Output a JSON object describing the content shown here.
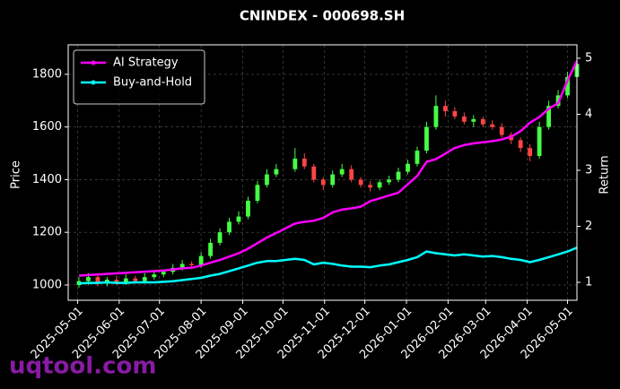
{
  "chart_data": {
    "type": "candlestick",
    "title": "CNINDEX - 000698.SH",
    "ylabel": "Price",
    "y2label": "Return",
    "x": [
      "2025-05-02",
      "2025-05-09",
      "2025-05-16",
      "2025-05-23",
      "2025-05-30",
      "2025-06-06",
      "2025-06-13",
      "2025-06-20",
      "2025-06-27",
      "2025-07-04",
      "2025-07-11",
      "2025-07-18",
      "2025-07-25",
      "2025-08-01",
      "2025-08-08",
      "2025-08-15",
      "2025-08-22",
      "2025-08-29",
      "2025-09-05",
      "2025-09-12",
      "2025-09-19",
      "2025-09-26",
      "2025-10-10",
      "2025-10-17",
      "2025-10-24",
      "2025-10-31",
      "2025-11-07",
      "2025-11-14",
      "2025-11-21",
      "2025-11-28",
      "2025-12-05",
      "2025-12-12",
      "2025-12-19",
      "2025-12-26",
      "2026-01-02",
      "2026-01-09",
      "2026-01-16",
      "2026-01-23",
      "2026-01-30",
      "2026-02-06",
      "2026-02-13",
      "2026-02-20",
      "2026-02-27",
      "2026-03-06",
      "2026-03-13",
      "2026-03-20",
      "2026-03-27",
      "2026-04-03",
      "2026-04-10",
      "2026-04-17",
      "2026-04-24",
      "2026-05-01",
      "2026-05-08"
    ],
    "open": [
      1000,
      1015,
      1030,
      1005,
      1020,
      1010,
      1025,
      1015,
      1030,
      1040,
      1050,
      1065,
      1080,
      1075,
      1110,
      1160,
      1200,
      1240,
      1260,
      1320,
      1380,
      1420,
      1440,
      1480,
      1450,
      1400,
      1380,
      1420,
      1440,
      1400,
      1380,
      1370,
      1390,
      1400,
      1430,
      1460,
      1510,
      1600,
      1680,
      1660,
      1640,
      1620,
      1630,
      1610,
      1600,
      1570,
      1550,
      1520,
      1490,
      1600,
      1680,
      1720,
      1790
    ],
    "high": [
      1030,
      1045,
      1040,
      1030,
      1035,
      1040,
      1035,
      1045,
      1055,
      1060,
      1080,
      1095,
      1090,
      1125,
      1175,
      1215,
      1255,
      1280,
      1335,
      1395,
      1440,
      1460,
      1520,
      1500,
      1460,
      1410,
      1435,
      1460,
      1455,
      1410,
      1395,
      1400,
      1415,
      1445,
      1475,
      1525,
      1620,
      1720,
      1700,
      1675,
      1655,
      1645,
      1640,
      1625,
      1615,
      1580,
      1560,
      1535,
      1620,
      1700,
      1740,
      1810,
      1860
    ],
    "low": [
      990,
      1000,
      995,
      995,
      1000,
      1000,
      1005,
      1005,
      1020,
      1030,
      1040,
      1055,
      1060,
      1065,
      1100,
      1150,
      1190,
      1230,
      1250,
      1310,
      1370,
      1410,
      1430,
      1440,
      1390,
      1360,
      1370,
      1410,
      1390,
      1370,
      1355,
      1360,
      1380,
      1390,
      1420,
      1450,
      1500,
      1590,
      1640,
      1630,
      1610,
      1600,
      1600,
      1590,
      1560,
      1535,
      1505,
      1470,
      1480,
      1590,
      1670,
      1710,
      1780
    ],
    "close": [
      1015,
      1030,
      1005,
      1020,
      1010,
      1025,
      1015,
      1030,
      1040,
      1050,
      1065,
      1080,
      1075,
      1110,
      1160,
      1200,
      1240,
      1260,
      1320,
      1380,
      1420,
      1440,
      1480,
      1450,
      1400,
      1380,
      1420,
      1440,
      1400,
      1380,
      1370,
      1390,
      1400,
      1430,
      1460,
      1510,
      1600,
      1680,
      1660,
      1640,
      1620,
      1630,
      1610,
      1600,
      1570,
      1550,
      1520,
      1490,
      1600,
      1680,
      1720,
      1790,
      1840
    ],
    "up_color": "#44ff44",
    "down_color": "#ff4444",
    "series": [
      {
        "name": "AI Strategy",
        "color": "#ff00ff",
        "axis": "y2",
        "values": [
          1.12,
          1.13,
          1.14,
          1.15,
          1.16,
          1.17,
          1.18,
          1.19,
          1.2,
          1.21,
          1.23,
          1.25,
          1.26,
          1.3,
          1.35,
          1.4,
          1.46,
          1.52,
          1.6,
          1.7,
          1.8,
          1.88,
          2.05,
          2.08,
          2.1,
          2.15,
          2.25,
          2.3,
          2.32,
          2.35,
          2.45,
          2.5,
          2.55,
          2.6,
          2.75,
          2.9,
          3.15,
          3.2,
          3.3,
          3.4,
          3.45,
          3.48,
          3.5,
          3.52,
          3.55,
          3.6,
          3.7,
          3.85,
          3.95,
          4.1,
          4.2,
          4.6,
          4.95
        ]
      },
      {
        "name": "Buy-and-Hold",
        "color": "#00ffff",
        "axis": "y2",
        "values": [
          0.98,
          0.99,
          0.99,
          1.0,
          0.99,
          0.99,
          1.0,
          1.0,
          1.0,
          1.01,
          1.02,
          1.04,
          1.06,
          1.08,
          1.12,
          1.15,
          1.2,
          1.25,
          1.3,
          1.35,
          1.38,
          1.38,
          1.42,
          1.4,
          1.32,
          1.35,
          1.33,
          1.3,
          1.28,
          1.28,
          1.27,
          1.3,
          1.32,
          1.36,
          1.4,
          1.45,
          1.55,
          1.52,
          1.5,
          1.48,
          1.5,
          1.48,
          1.46,
          1.47,
          1.45,
          1.42,
          1.4,
          1.36,
          1.4,
          1.45,
          1.5,
          1.55,
          1.62
        ]
      }
    ],
    "xlim": [
      "2025-04-24",
      "2026-05-08"
    ],
    "xticks": [
      "2025-05-01",
      "2025-06-01",
      "2025-07-01",
      "2025-08-01",
      "2025-09-01",
      "2025-10-01",
      "2025-11-01",
      "2025-12-01",
      "2026-01-01",
      "2026-02-01",
      "2026-03-01",
      "2026-04-01",
      "2026-05-01"
    ],
    "ylim": [
      942,
      1912
    ],
    "yticks": [
      1000,
      1200,
      1400,
      1600,
      1800
    ],
    "y2lim": [
      0.68,
      5.24
    ],
    "y2ticks": [
      1,
      2,
      3,
      4,
      5
    ],
    "grid": true,
    "legend": "upper left"
  },
  "watermark": "uqtool.com"
}
